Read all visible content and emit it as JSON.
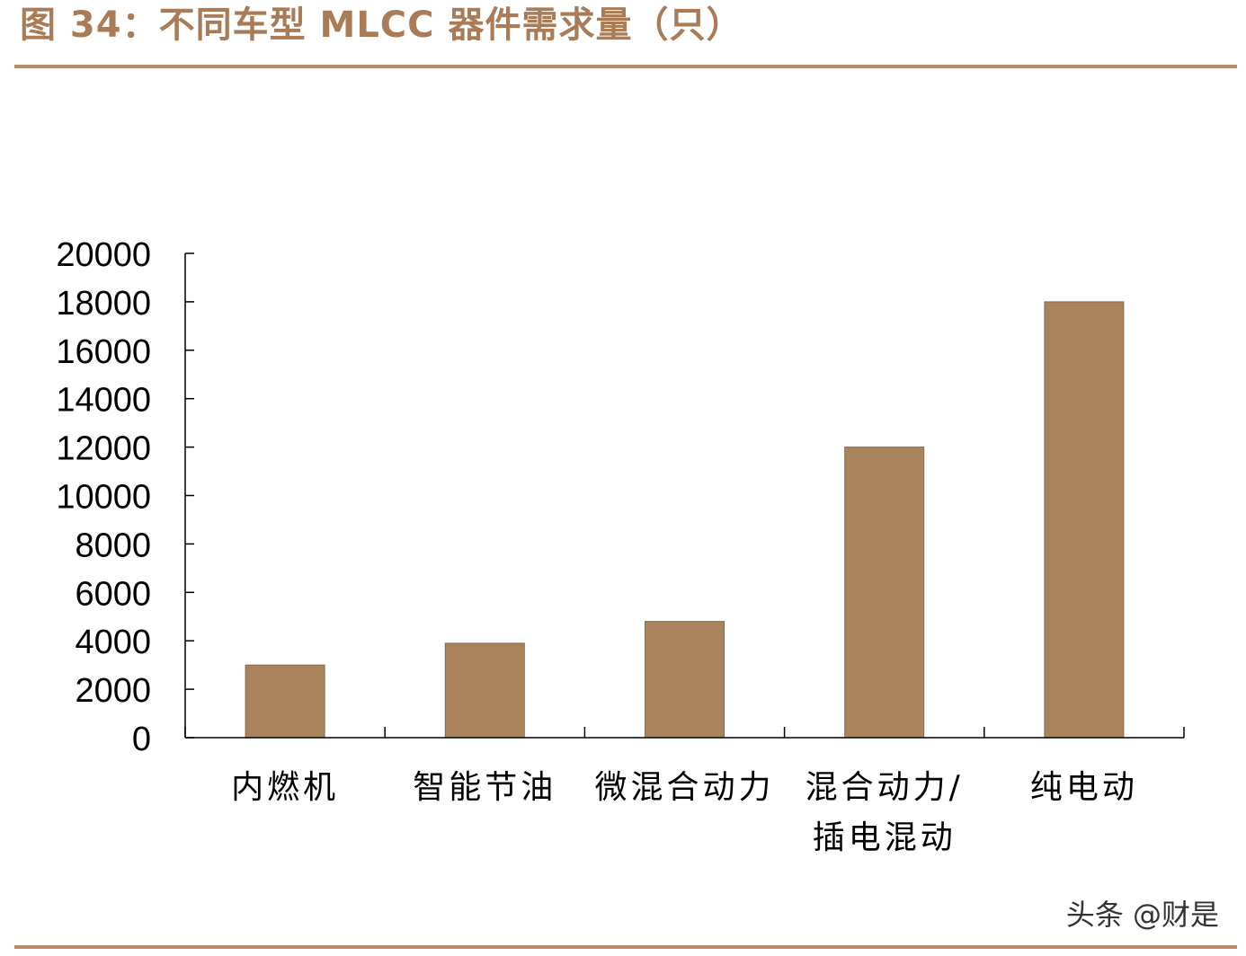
{
  "title": "图 34：不同车型 MLCC 器件需求量（只）",
  "watermark": "头条 @财是",
  "colors": {
    "bar": "#a8835b",
    "title": "#a97c57",
    "rule": "#b98a63",
    "axis": "#000000"
  },
  "chart_data": {
    "type": "bar",
    "title": "图 34：不同车型 MLCC 器件需求量（只）",
    "categories": [
      [
        "内燃机"
      ],
      [
        "智能节油"
      ],
      [
        "微混合动力"
      ],
      [
        "混合动力/",
        "插电混动"
      ],
      [
        "纯电动"
      ]
    ],
    "values": [
      3000,
      3900,
      4800,
      12000,
      18000
    ],
    "y_ticks": [
      "0",
      "2000",
      "4000",
      "6000",
      "8000",
      "10000",
      "12000",
      "14000",
      "16000",
      "18000",
      "20000"
    ],
    "ylim": [
      0,
      20000
    ],
    "xlabel": "",
    "ylabel": "",
    "grid": false,
    "legend": "none"
  }
}
